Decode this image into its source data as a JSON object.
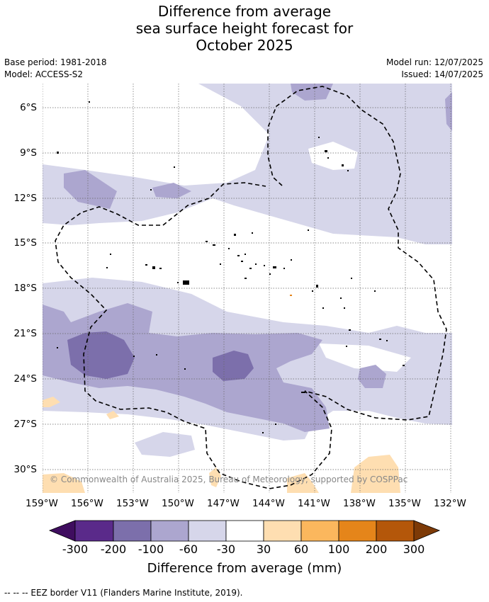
{
  "title": {
    "line1": "Difference from average",
    "line2": "sea surface height forecast for",
    "line3": "October 2025"
  },
  "meta": {
    "base_period": "Base period: 1981-2018",
    "model": "Model: ACCESS-S2",
    "model_run": "Model run: 12/07/2025",
    "issued": "Issued: 14/07/2025"
  },
  "map": {
    "lat_labels": [
      "6°S",
      "9°S",
      "12°S",
      "15°S",
      "18°S",
      "21°S",
      "24°S",
      "27°S",
      "30°S"
    ],
    "lon_labels": [
      "159°W",
      "156°W",
      "153°W",
      "150°W",
      "147°W",
      "144°W",
      "141°W",
      "138°W",
      "135°W",
      "132°W"
    ],
    "copyright": "© Commonwealth of Australia 2025, Bureau of Meteorology, supported by COSPPac",
    "colors": {
      "neg300": "#3f0d5f",
      "neg200": "#5a2a8a",
      "neg100": "#7c6fab",
      "neg60": "#aca6cf",
      "neg30": "#d6d6ea",
      "zero": "#ffffff",
      "pos30": "#fedeb1",
      "pos60": "#fbb75d",
      "pos100": "#e5851a",
      "pos200": "#b4570a",
      "pos300": "#7d3a07"
    }
  },
  "colorbar": {
    "labels": [
      "-300",
      "-200",
      "-100",
      "-60",
      "-30",
      "30",
      "60",
      "100",
      "200",
      "300"
    ],
    "title": "Difference from average (mm)"
  },
  "footer": "--  --  -- EEZ border V11 (Flanders Marine Institute, 2019)."
}
